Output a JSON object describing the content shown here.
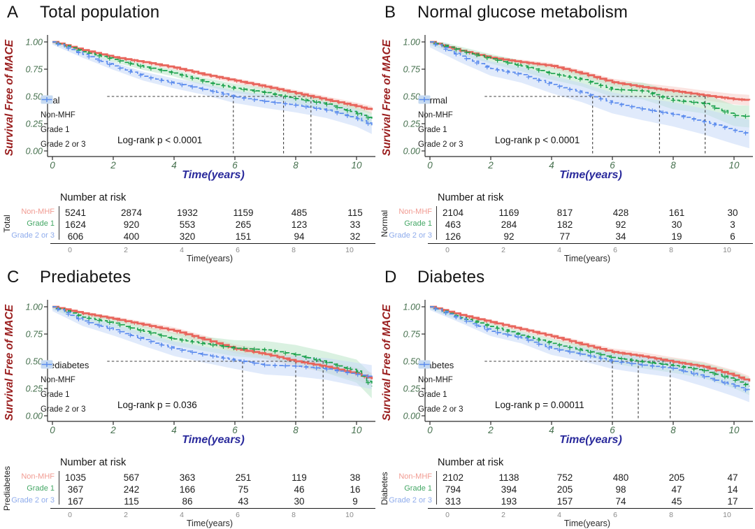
{
  "figure": {
    "background": "#ffffff",
    "y_axis_label": "Survival Free of MACE",
    "x_axis_label": "Time(years)",
    "risk_header": "Number at risk",
    "risk_time_label": "Time(years)",
    "x_ticks": [
      0,
      2,
      4,
      6,
      8,
      10
    ],
    "y_tick_values": [
      0,
      0.25,
      0.5,
      0.75,
      1
    ],
    "y_tick_labels": [
      "0.00",
      "0.25",
      "0.50",
      "0.75",
      "1.00"
    ],
    "colors": {
      "non_mhf_line": "#E8655C",
      "non_mhf_fill": "#F8CDC9",
      "non_mhf_muted": "#F19B92",
      "grade1_line": "#1DA24D",
      "grade1_fill": "#BCE5C9",
      "grade1_muted": "#44A765",
      "grade23_line": "#5C8CEE",
      "grade23_fill": "#C6D8F8",
      "grade23_muted": "#8FACEC",
      "axis_tick_text": "#47714F",
      "y_label_text": "#9A1E1E",
      "time_label_text": "#2A2A9C",
      "median_dash": "#3f3f3f"
    }
  },
  "chart_data": [
    {
      "type": "line",
      "panel": "A",
      "title": "Total population",
      "legend_title": "Total",
      "logrank": "Log-rank p < 0.0001",
      "xlabel": "Time(years)",
      "ylabel": "Survival Free of MACE",
      "xlim": [
        0,
        10.9
      ],
      "ylim": [
        0,
        1
      ],
      "median_times": [
        5.95,
        7.6,
        8.5
      ],
      "x": [
        0,
        1,
        2,
        3,
        4,
        5,
        6,
        7,
        8,
        9,
        10,
        10.5
      ],
      "series": [
        {
          "name": "Non-MHF",
          "color": "#E8655C",
          "fill": "#F8CDC9",
          "dash": false,
          "ribbon_w": [
            0.008,
            0.035
          ],
          "y": [
            1.0,
            0.925,
            0.86,
            0.815,
            0.765,
            0.7,
            0.645,
            0.59,
            0.53,
            0.47,
            0.41,
            0.375
          ]
        },
        {
          "name": "Grade 1",
          "color": "#1DA24D",
          "fill": "#BCE5C9",
          "dash": true,
          "ribbon_w": [
            0.015,
            0.06
          ],
          "y": [
            1.0,
            0.91,
            0.84,
            0.77,
            0.715,
            0.635,
            0.575,
            0.535,
            0.48,
            0.43,
            0.345,
            0.29
          ]
        },
        {
          "name": "Grade 2 or 3",
          "color": "#5C8CEE",
          "fill": "#C6D8F8",
          "dash": true,
          "ribbon_w": [
            0.025,
            0.08
          ],
          "y": [
            1.0,
            0.885,
            0.78,
            0.685,
            0.62,
            0.565,
            0.495,
            0.455,
            0.42,
            0.375,
            0.3,
            0.235
          ]
        }
      ],
      "risk_table": {
        "group_label": "Total",
        "rows": [
          {
            "label": "Non-MHF",
            "color": "#F19B92",
            "values": [
              5241,
              2874,
              1932,
              1159,
              485,
              115
            ]
          },
          {
            "label": "Grade 1",
            "color": "#44A765",
            "values": [
              1624,
              920,
              553,
              265,
              123,
              33
            ]
          },
          {
            "label": "Grade 2 or 3",
            "color": "#8FACEC",
            "values": [
              606,
              400,
              320,
              151,
              94,
              32
            ]
          }
        ]
      }
    },
    {
      "type": "line",
      "panel": "B",
      "title": "Normal glucose metabolism",
      "legend_title": "Normal",
      "logrank": "Log-rank p < 0.0001",
      "xlabel": "Time(years)",
      "ylabel": "Survival Free of MACE",
      "xlim": [
        0,
        10.9
      ],
      "ylim": [
        0,
        1
      ],
      "median_times": [
        5.35,
        7.55,
        9.05
      ],
      "x": [
        0,
        1,
        2,
        3,
        4,
        5,
        6,
        7,
        8,
        9,
        10,
        10.5
      ],
      "series": [
        {
          "name": "Non-MHF",
          "color": "#E8655C",
          "fill": "#F8CDC9",
          "dash": false,
          "ribbon_w": [
            0.012,
            0.05
          ],
          "y": [
            1.0,
            0.92,
            0.855,
            0.815,
            0.78,
            0.71,
            0.63,
            0.585,
            0.55,
            0.51,
            0.475,
            0.465
          ]
        },
        {
          "name": "Grade 1",
          "color": "#1DA24D",
          "fill": "#BCE5C9",
          "dash": true,
          "ribbon_w": [
            0.03,
            0.1
          ],
          "y": [
            1.0,
            0.92,
            0.845,
            0.78,
            0.71,
            0.655,
            0.565,
            0.55,
            0.465,
            0.435,
            0.325,
            0.315
          ]
        },
        {
          "name": "Grade 2 or 3",
          "color": "#5C8CEE",
          "fill": "#C6D8F8",
          "dash": true,
          "ribbon_w": [
            0.05,
            0.13
          ],
          "y": [
            1.0,
            0.87,
            0.755,
            0.7,
            0.61,
            0.535,
            0.44,
            0.385,
            0.335,
            0.27,
            0.19,
            0.155
          ]
        }
      ],
      "risk_table": {
        "group_label": "Normal",
        "rows": [
          {
            "label": "Non-MHF",
            "color": "#F19B92",
            "values": [
              2104,
              1169,
              817,
              428,
              161,
              30
            ]
          },
          {
            "label": "Grade 1",
            "color": "#44A765",
            "values": [
              463,
              284,
              182,
              92,
              30,
              3
            ]
          },
          {
            "label": "Grade 2 or 3",
            "color": "#8FACEC",
            "values": [
              126,
              92,
              77,
              34,
              19,
              6
            ]
          }
        ]
      }
    },
    {
      "type": "line",
      "panel": "C",
      "title": "Prediabetes",
      "legend_title": "Prediabetes",
      "logrank": "Log-rank p = 0.036",
      "xlabel": "Time(years)",
      "ylabel": "Survival Free of MACE",
      "xlim": [
        0,
        10.9
      ],
      "ylim": [
        0,
        1
      ],
      "median_times": [
        6.25,
        8.0,
        8.9
      ],
      "x": [
        0,
        1,
        2,
        3,
        4,
        5,
        6,
        7,
        8,
        9,
        10,
        10.5
      ],
      "series": [
        {
          "name": "Non-MHF",
          "color": "#E8655C",
          "fill": "#F8CDC9",
          "dash": false,
          "ribbon_w": [
            0.015,
            0.06
          ],
          "y": [
            1.0,
            0.94,
            0.89,
            0.835,
            0.78,
            0.7,
            0.615,
            0.565,
            0.5,
            0.45,
            0.385,
            0.335
          ]
        },
        {
          "name": "Grade 1",
          "color": "#1DA24D",
          "fill": "#BCE5C9",
          "dash": true,
          "ribbon_w": [
            0.025,
            0.11
          ],
          "y": [
            1.0,
            0.905,
            0.85,
            0.775,
            0.705,
            0.66,
            0.62,
            0.605,
            0.56,
            0.49,
            0.41,
            0.27
          ]
        },
        {
          "name": "Grade 2 or 3",
          "color": "#5C8CEE",
          "fill": "#C6D8F8",
          "dash": true,
          "ribbon_w": [
            0.04,
            0.11
          ],
          "y": [
            1.0,
            0.87,
            0.79,
            0.7,
            0.615,
            0.56,
            0.51,
            0.465,
            0.455,
            0.43,
            0.38,
            0.355
          ]
        }
      ],
      "risk_table": {
        "group_label": "Prediabetes",
        "rows": [
          {
            "label": "Non-MHF",
            "color": "#F19B92",
            "values": [
              1035,
              567,
              363,
              251,
              119,
              38
            ]
          },
          {
            "label": "Grade 1",
            "color": "#44A765",
            "values": [
              367,
              242,
              166,
              75,
              46,
              16
            ]
          },
          {
            "label": "Grade 2 or 3",
            "color": "#8FACEC",
            "values": [
              167,
              115,
              86,
              43,
              30,
              9
            ]
          }
        ]
      }
    },
    {
      "type": "line",
      "panel": "D",
      "title": "Diabetes",
      "legend_title": "Diabetes",
      "logrank": "Log-rank p = 0.00011",
      "xlabel": "Time(years)",
      "ylabel": "Survival Free of MACE",
      "xlim": [
        0,
        10.9
      ],
      "ylim": [
        0,
        1
      ],
      "median_times": [
        6.0,
        6.85,
        7.9
      ],
      "x": [
        0,
        1,
        2,
        3,
        4,
        5,
        6,
        7,
        8,
        9,
        10,
        10.5
      ],
      "series": [
        {
          "name": "Non-MHF",
          "color": "#E8655C",
          "fill": "#F8CDC9",
          "dash": false,
          "ribbon_w": [
            0.012,
            0.05
          ],
          "y": [
            1.0,
            0.925,
            0.86,
            0.795,
            0.73,
            0.655,
            0.585,
            0.545,
            0.495,
            0.45,
            0.37,
            0.315
          ]
        },
        {
          "name": "Grade 1",
          "color": "#1DA24D",
          "fill": "#BCE5C9",
          "dash": true,
          "ribbon_w": [
            0.02,
            0.08
          ],
          "y": [
            1.0,
            0.9,
            0.82,
            0.74,
            0.665,
            0.6,
            0.535,
            0.495,
            0.46,
            0.415,
            0.33,
            0.27
          ]
        },
        {
          "name": "Grade 2 or 3",
          "color": "#5C8CEE",
          "fill": "#C6D8F8",
          "dash": true,
          "ribbon_w": [
            0.03,
            0.1
          ],
          "y": [
            1.0,
            0.89,
            0.775,
            0.715,
            0.615,
            0.565,
            0.5,
            0.465,
            0.435,
            0.36,
            0.275,
            0.225
          ]
        }
      ],
      "risk_table": {
        "group_label": "Diabetes",
        "rows": [
          {
            "label": "Non-MHF",
            "color": "#F19B92",
            "values": [
              2102,
              1138,
              752,
              480,
              205,
              47
            ]
          },
          {
            "label": "Grade 1",
            "color": "#44A765",
            "values": [
              794,
              394,
              205,
              98,
              47,
              14
            ]
          },
          {
            "label": "Grade 2 or 3",
            "color": "#8FACEC",
            "values": [
              313,
              193,
              157,
              74,
              45,
              17
            ]
          }
        ]
      }
    }
  ]
}
